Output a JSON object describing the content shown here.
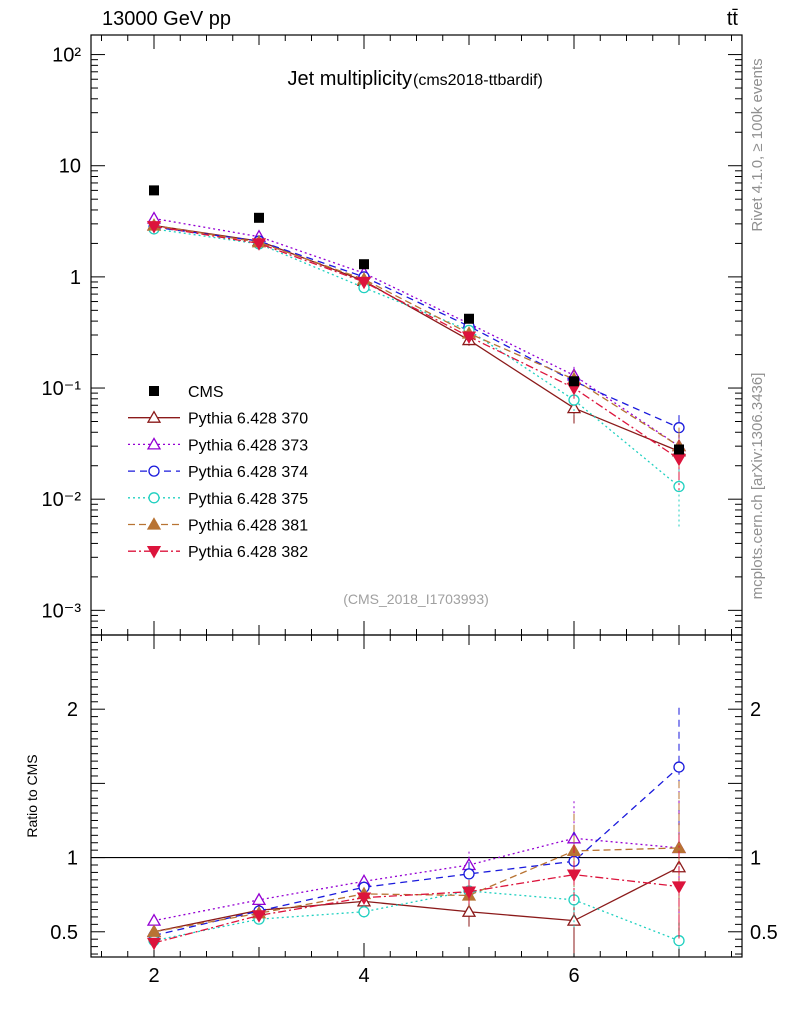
{
  "header": {
    "energy_label": "13000 GeV pp",
    "process_label": "tt̄"
  },
  "side_labels": {
    "rivet": "Rivet 4.1.0, ≥ 100k events",
    "mcplots": "mcplots.cern.ch [arXiv:1306.3436]"
  },
  "chart_data": {
    "type": "line",
    "title": "Jet multiplicity",
    "subtitle": "(cms2018-ttbardif)",
    "analysis_id": "(CMS_2018_I1703993)",
    "xlabel": "",
    "xlim": [
      1.4,
      7.6
    ],
    "x_ticks": [
      2,
      4,
      6
    ],
    "x": [
      2,
      3,
      4,
      5,
      6,
      7
    ],
    "main": {
      "ylabel": "",
      "yscale": "log",
      "ylim": [
        0.0006,
        150
      ],
      "y_tick_labels": [
        "10⁻³",
        "10⁻²",
        "10⁻¹",
        "1",
        "10",
        "10²"
      ],
      "y_tick_values": [
        0.001,
        0.01,
        0.1,
        1,
        10,
        100
      ]
    },
    "ratio": {
      "ylabel": "Ratio to CMS",
      "ylim": [
        0.33,
        2.5
      ],
      "y_tick_labels": [
        "0.5",
        "1",
        "2"
      ],
      "y_tick_values": [
        0.5,
        1,
        2
      ],
      "reference_line": 1
    },
    "legend_position": "middle-left",
    "data_series": {
      "name": "CMS",
      "values": [
        6.0,
        3.4,
        1.3,
        0.42,
        0.115,
        0.028
      ],
      "color": "#000000"
    },
    "series": [
      {
        "name": "Pythia 6.428 370",
        "color": "#8B1A1A",
        "dash": "",
        "marker": "triangle-up-open",
        "values": [
          2.9,
          2.1,
          0.92,
          0.27,
          0.066,
          0.027
        ],
        "errors": [
          0.1,
          0.08,
          0.05,
          0.03,
          0.018,
          0.012
        ],
        "ratio": [
          0.5,
          0.645,
          0.705,
          0.635,
          0.575,
          0.935
        ],
        "ratio_err": [
          0.02,
          0.03,
          0.04,
          0.1,
          0.22,
          0.45
        ]
      },
      {
        "name": "Pythia 6.428 373",
        "color": "#9400D3",
        "dash": "2,3",
        "marker": "triangle-up-open",
        "values": [
          3.35,
          2.3,
          1.08,
          0.38,
          0.13,
          0.03
        ],
        "errors": [
          0.1,
          0.08,
          0.05,
          0.03,
          0.025,
          0.014
        ],
        "ratio": [
          0.575,
          0.715,
          0.84,
          0.95,
          1.13,
          1.065
        ],
        "ratio_err": [
          0.02,
          0.03,
          0.04,
          0.09,
          0.25,
          0.45
        ]
      },
      {
        "name": "Pythia 6.428 374",
        "color": "#1A1ADC",
        "dash": "7,5",
        "marker": "circle-open",
        "values": [
          2.8,
          2.1,
          1.0,
          0.36,
          0.115,
          0.044
        ],
        "errors": [
          0.1,
          0.08,
          0.05,
          0.03,
          0.02,
          0.013
        ],
        "ratio": [
          0.475,
          0.64,
          0.8,
          0.89,
          0.975,
          1.61
        ],
        "ratio_err": [
          0.02,
          0.03,
          0.04,
          0.08,
          0.2,
          0.4
        ]
      },
      {
        "name": "Pythia 6.428 375",
        "color": "#20D0C0",
        "dash": "2,3",
        "marker": "circle-open",
        "values": [
          2.7,
          1.98,
          0.8,
          0.33,
          0.078,
          0.013
        ],
        "errors": [
          0.1,
          0.08,
          0.05,
          0.03,
          0.02,
          0.0075
        ],
        "ratio": [
          0.44,
          0.585,
          0.635,
          0.775,
          0.715,
          0.44
        ],
        "ratio_err": [
          0.02,
          0.03,
          0.04,
          0.08,
          0.2,
          0.06
        ]
      },
      {
        "name": "Pythia 6.428 381",
        "color": "#B87333",
        "dash": "7,4",
        "marker": "triangle-up-filled",
        "values": [
          2.9,
          2.05,
          0.95,
          0.31,
          0.12,
          0.03
        ],
        "errors": [
          0.1,
          0.08,
          0.05,
          0.03,
          0.025,
          0.014
        ],
        "ratio": [
          0.5,
          0.625,
          0.755,
          0.745,
          1.045,
          1.065
        ],
        "ratio_err": [
          0.02,
          0.03,
          0.04,
          0.08,
          0.25,
          0.45
        ]
      },
      {
        "name": "Pythia 6.428 382",
        "color": "#DC143C",
        "dash": "8,3,2,3",
        "marker": "triangle-down-filled",
        "values": [
          2.85,
          2.0,
          0.9,
          0.29,
          0.1,
          0.023
        ],
        "errors": [
          0.1,
          0.08,
          0.05,
          0.03,
          0.02,
          0.011
        ],
        "ratio": [
          0.425,
          0.61,
          0.73,
          0.77,
          0.885,
          0.805
        ],
        "ratio_err": [
          0.02,
          0.03,
          0.04,
          0.08,
          0.2,
          0.35
        ]
      }
    ]
  }
}
